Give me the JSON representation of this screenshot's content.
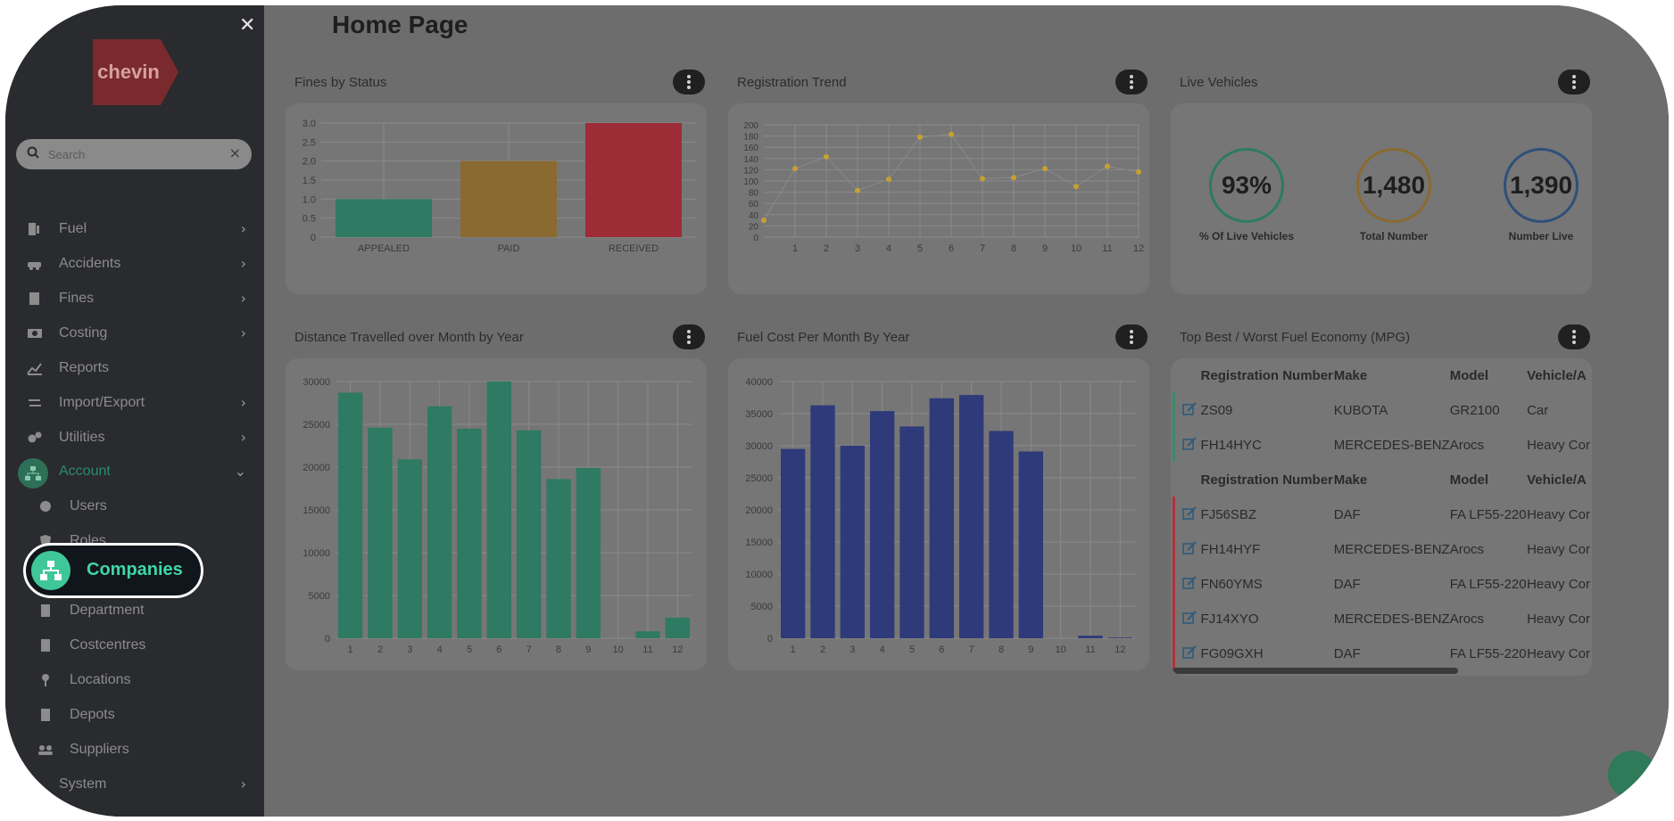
{
  "sidebar": {
    "logo_text": "chevin",
    "search_placeholder": "Search",
    "items": [
      {
        "label": "Fuel",
        "has_chevron": true
      },
      {
        "label": "Accidents",
        "has_chevron": true
      },
      {
        "label": "Fines",
        "has_chevron": true
      },
      {
        "label": "Costing",
        "has_chevron": true
      },
      {
        "label": "Reports",
        "has_chevron": false
      },
      {
        "label": "Import/Export",
        "has_chevron": true
      },
      {
        "label": "Utilities",
        "has_chevron": true
      },
      {
        "label": "Account",
        "expanded": true
      }
    ],
    "sub_items": [
      "Users",
      "Roles",
      "Companies",
      "Department",
      "Costcentres",
      "Locations",
      "Depots",
      "Suppliers"
    ],
    "system_label": "System",
    "highlighted": "Companies"
  },
  "header": {
    "title": "Home Page"
  },
  "cards": {
    "fines_title": "Fines by Status",
    "registration_title": "Registration Trend",
    "live_title": "Live Vehicles",
    "distance_title": "Distance Travelled over Month by Year",
    "fuelcost_title": "Fuel Cost Per Month By Year",
    "economy_title": "Top Best / Worst Fuel Economy (MPG)"
  },
  "live_vehicles": {
    "pct_value": "93%",
    "pct_label": "% Of Live Vehicles",
    "total_value": "1,480",
    "total_label": "Total Number",
    "live_value": "1,390",
    "live_label": "Number Live"
  },
  "economy_table": {
    "headers": [
      "Registration Number",
      "Make",
      "Model",
      "Vehicle/A"
    ],
    "best": [
      [
        "ZS09",
        "KUBOTA",
        "GR2100",
        "Car"
      ],
      [
        "FH14HYC",
        "MERCEDES-BENZ",
        "Arocs",
        "Heavy Cor"
      ]
    ],
    "worst": [
      [
        "FJ56SBZ",
        "DAF",
        "FA LF55-220",
        "Heavy Cor"
      ],
      [
        "FH14HYF",
        "MERCEDES-BENZ",
        "Arocs",
        "Heavy Cor"
      ],
      [
        "FN60YMS",
        "DAF",
        "FA LF55-220",
        "Heavy Cor"
      ],
      [
        "FJ14XYO",
        "MERCEDES-BENZ",
        "Arocs",
        "Heavy Cor"
      ],
      [
        "FG09GXH",
        "DAF",
        "FA LF55-220",
        "Heavy Cor"
      ]
    ]
  },
  "colors": {
    "best_marker": "#3a8a6a",
    "worst_marker": "#b0323c",
    "accent": "#3fc79a"
  },
  "chart_data": [
    {
      "type": "bar",
      "categories": [
        "APPEALED",
        "PAID",
        "RECEIVED"
      ],
      "values": [
        1,
        2,
        3
      ],
      "colors": [
        "#2e7a63",
        "#8a6a30",
        "#9e2c36"
      ],
      "ylim": [
        0,
        3
      ],
      "yticks": [
        "0",
        "0.5",
        "1.0",
        "1.5",
        "2.0",
        "2.5",
        "3.0"
      ]
    },
    {
      "type": "line",
      "x": [
        0,
        1,
        2,
        3,
        4,
        5,
        6,
        7,
        8,
        9,
        10,
        11,
        12
      ],
      "values": [
        30,
        122,
        143,
        83,
        103,
        178,
        183,
        104,
        106,
        122,
        90,
        126,
        116
      ],
      "xticks": [
        "1",
        "2",
        "3",
        "4",
        "5",
        "6",
        "7",
        "8",
        "9",
        "10",
        "11",
        "12"
      ],
      "ylim": [
        0,
        200
      ],
      "yticks": [
        "0",
        "20",
        "40",
        "60",
        "80",
        "100",
        "120",
        "140",
        "160",
        "180",
        "200"
      ],
      "color": "#c8a030"
    },
    {
      "type": "bar",
      "categories": [
        "1",
        "2",
        "3",
        "4",
        "5",
        "6",
        "7",
        "8",
        "9",
        "10",
        "11",
        "12"
      ],
      "values": [
        28700,
        24600,
        20900,
        27100,
        24500,
        30000,
        24300,
        18600,
        19900,
        0,
        800,
        2400
      ],
      "color": "#2e7a63",
      "ylim": [
        0,
        30000
      ],
      "yticks": [
        "0",
        "5000",
        "10000",
        "15000",
        "20000",
        "25000",
        "30000"
      ]
    },
    {
      "type": "bar",
      "categories": [
        "1",
        "2",
        "3",
        "4",
        "5",
        "6",
        "7",
        "8",
        "9",
        "10",
        "11",
        "12"
      ],
      "values": [
        29500,
        36300,
        30000,
        35400,
        33000,
        37400,
        37900,
        32300,
        29100,
        0,
        400,
        100
      ],
      "color": "#2f3a7a",
      "ylim": [
        0,
        40000
      ],
      "yticks": [
        "0",
        "5000",
        "10000",
        "15000",
        "20000",
        "25000",
        "30000",
        "35000",
        "40000"
      ]
    }
  ]
}
